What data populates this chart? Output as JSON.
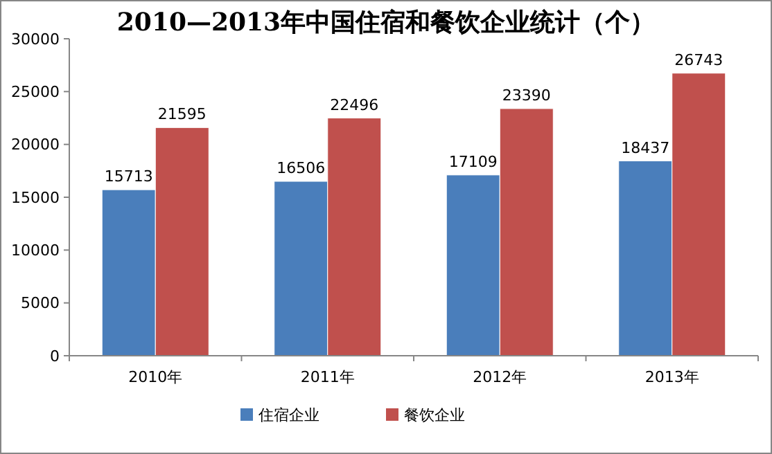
{
  "chart_data": {
    "type": "bar",
    "title": "2010—2013年中国住宿和餐饮企业统计（个）",
    "categories": [
      "2010年",
      "2011年",
      "2012年",
      "2013年"
    ],
    "series": [
      {
        "name": "住宿企业",
        "color": "#4a7ebb",
        "values": [
          15713,
          16506,
          17109,
          18437
        ]
      },
      {
        "name": "餐饮企业",
        "color": "#c0504d",
        "values": [
          21595,
          22496,
          23390,
          26743
        ]
      }
    ],
    "ylim": [
      0,
      30000
    ],
    "yticks": [
      0,
      5000,
      10000,
      15000,
      20000,
      25000,
      30000
    ],
    "grid": false,
    "legend": "bottom",
    "data_labels": true
  }
}
